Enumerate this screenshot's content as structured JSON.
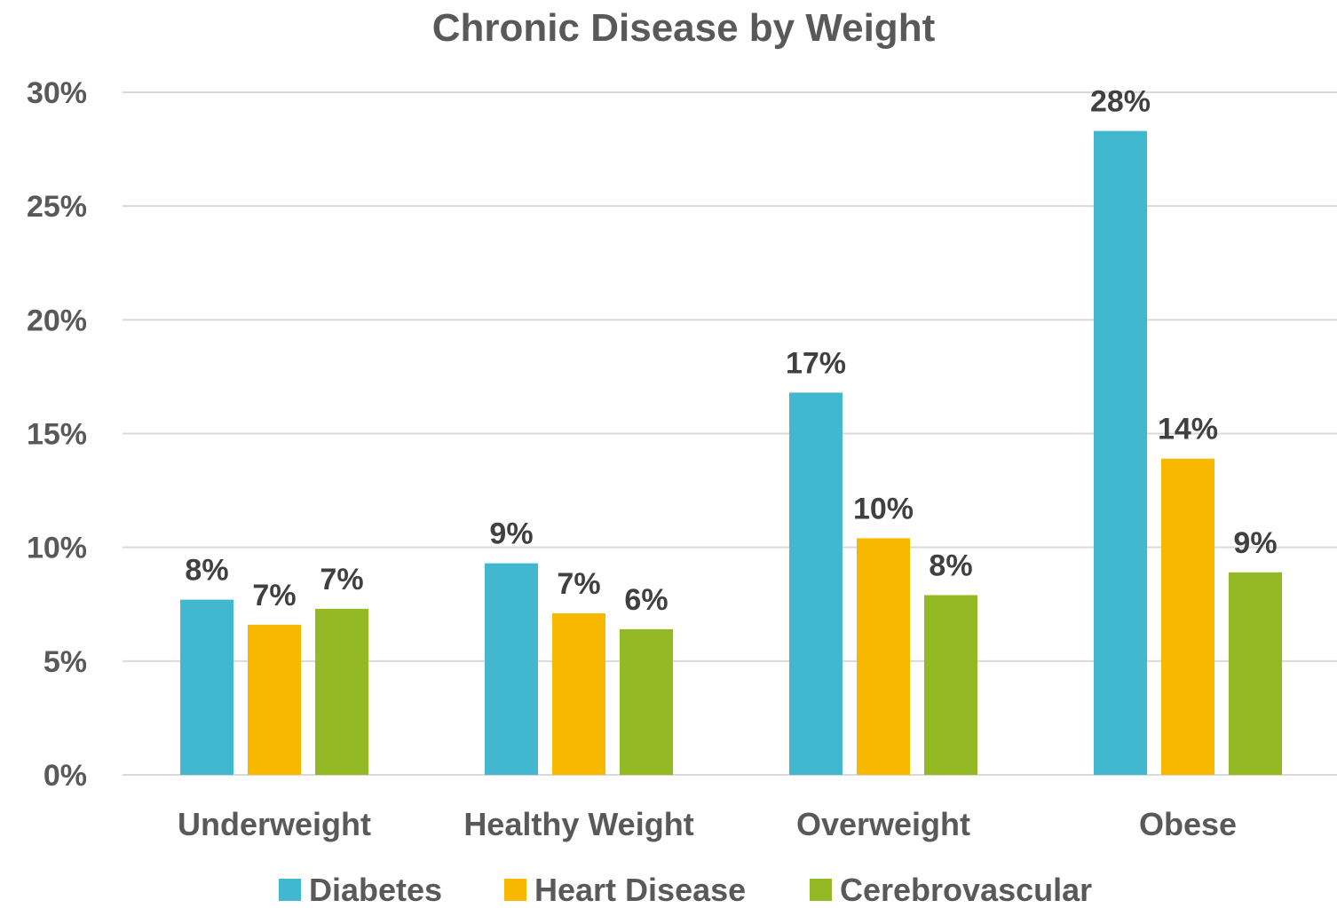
{
  "chart_data": {
    "type": "bar",
    "title": "Chronic Disease by Weight",
    "xlabel": "",
    "ylabel": "",
    "categories": [
      "Underweight",
      "Healthy Weight",
      "Overweight",
      "Obese"
    ],
    "series": [
      {
        "name": "Diabetes",
        "color": "#41b8d0",
        "values": [
          7.7,
          9.3,
          16.8,
          28.3
        ],
        "labels": [
          "8%",
          "9%",
          "17%",
          "28%"
        ]
      },
      {
        "name": "Heart Disease",
        "color": "#f8b800",
        "values": [
          6.6,
          7.1,
          10.4,
          13.9
        ],
        "labels": [
          "7%",
          "7%",
          "10%",
          "14%"
        ]
      },
      {
        "name": "Cerebrovascular",
        "color": "#93ba24",
        "values": [
          7.3,
          6.4,
          7.9,
          8.9
        ],
        "labels": [
          "7%",
          "6%",
          "8%",
          "9%"
        ]
      }
    ],
    "ylim": [
      0,
      30
    ],
    "yticks": [
      0,
      5,
      10,
      15,
      20,
      25,
      30
    ],
    "ytick_labels": [
      "0%",
      "5%",
      "10%",
      "15%",
      "20%",
      "25%",
      "30%"
    ],
    "grid": true,
    "legend_position": "bottom"
  }
}
